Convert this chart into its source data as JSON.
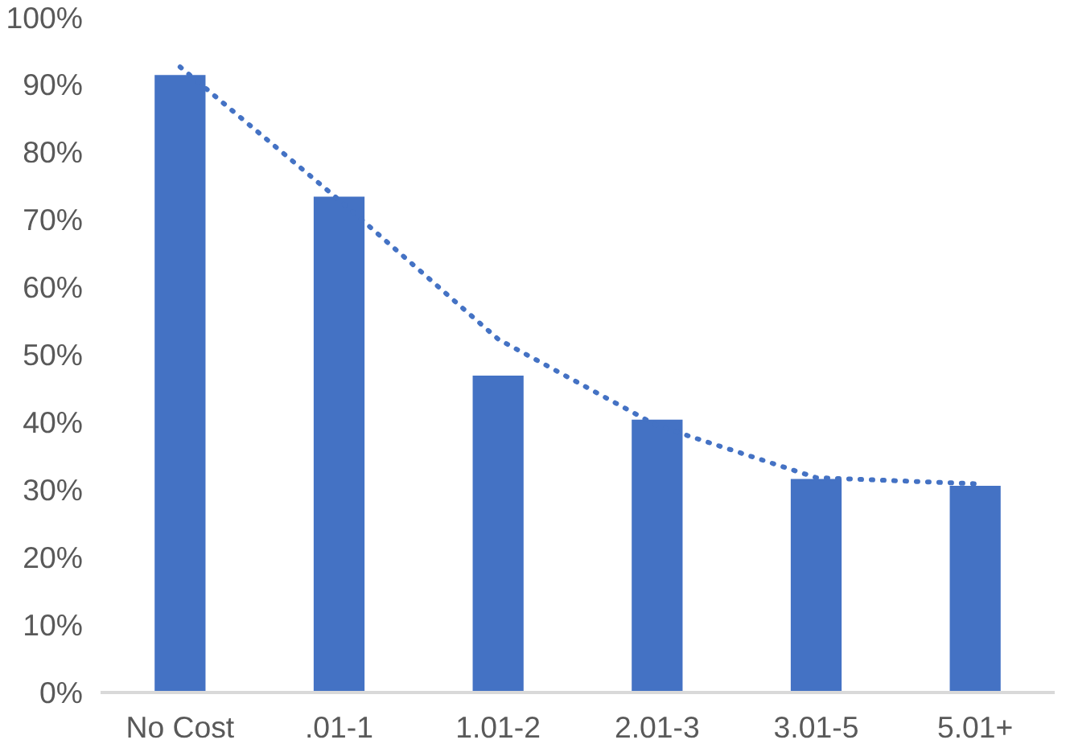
{
  "chart_data": {
    "type": "bar",
    "categories": [
      "No Cost",
      ".01-1",
      "1.01-2",
      "2.01-3",
      "3.01-5",
      "5.01+"
    ],
    "series": [
      {
        "color": "#4472c4",
        "values": [
          91.4,
          73.4,
          46.9,
          40.4,
          31.6,
          30.6
        ]
      },
      {
        "type": "line",
        "color": "#4472c4",
        "line_style": "dotted",
        "marker": "none",
        "values": [
          92.6,
          72.9,
          52.3,
          39.5,
          31.8,
          30.9
        ]
      }
    ],
    "ylim": [
      0,
      100
    ],
    "yticks": [
      {
        "value": 0,
        "label": "0%"
      },
      {
        "value": 10,
        "label": "10%"
      },
      {
        "value": 20,
        "label": "20%"
      },
      {
        "value": 30,
        "label": "30%"
      },
      {
        "value": 40,
        "label": "40%"
      },
      {
        "value": 50,
        "label": "50%"
      },
      {
        "value": 60,
        "label": "60%"
      },
      {
        "value": 70,
        "label": "70%"
      },
      {
        "value": 80,
        "label": "80%"
      },
      {
        "value": 90,
        "label": "90%"
      },
      {
        "value": 100,
        "label": "100%"
      }
    ],
    "grid": false
  }
}
